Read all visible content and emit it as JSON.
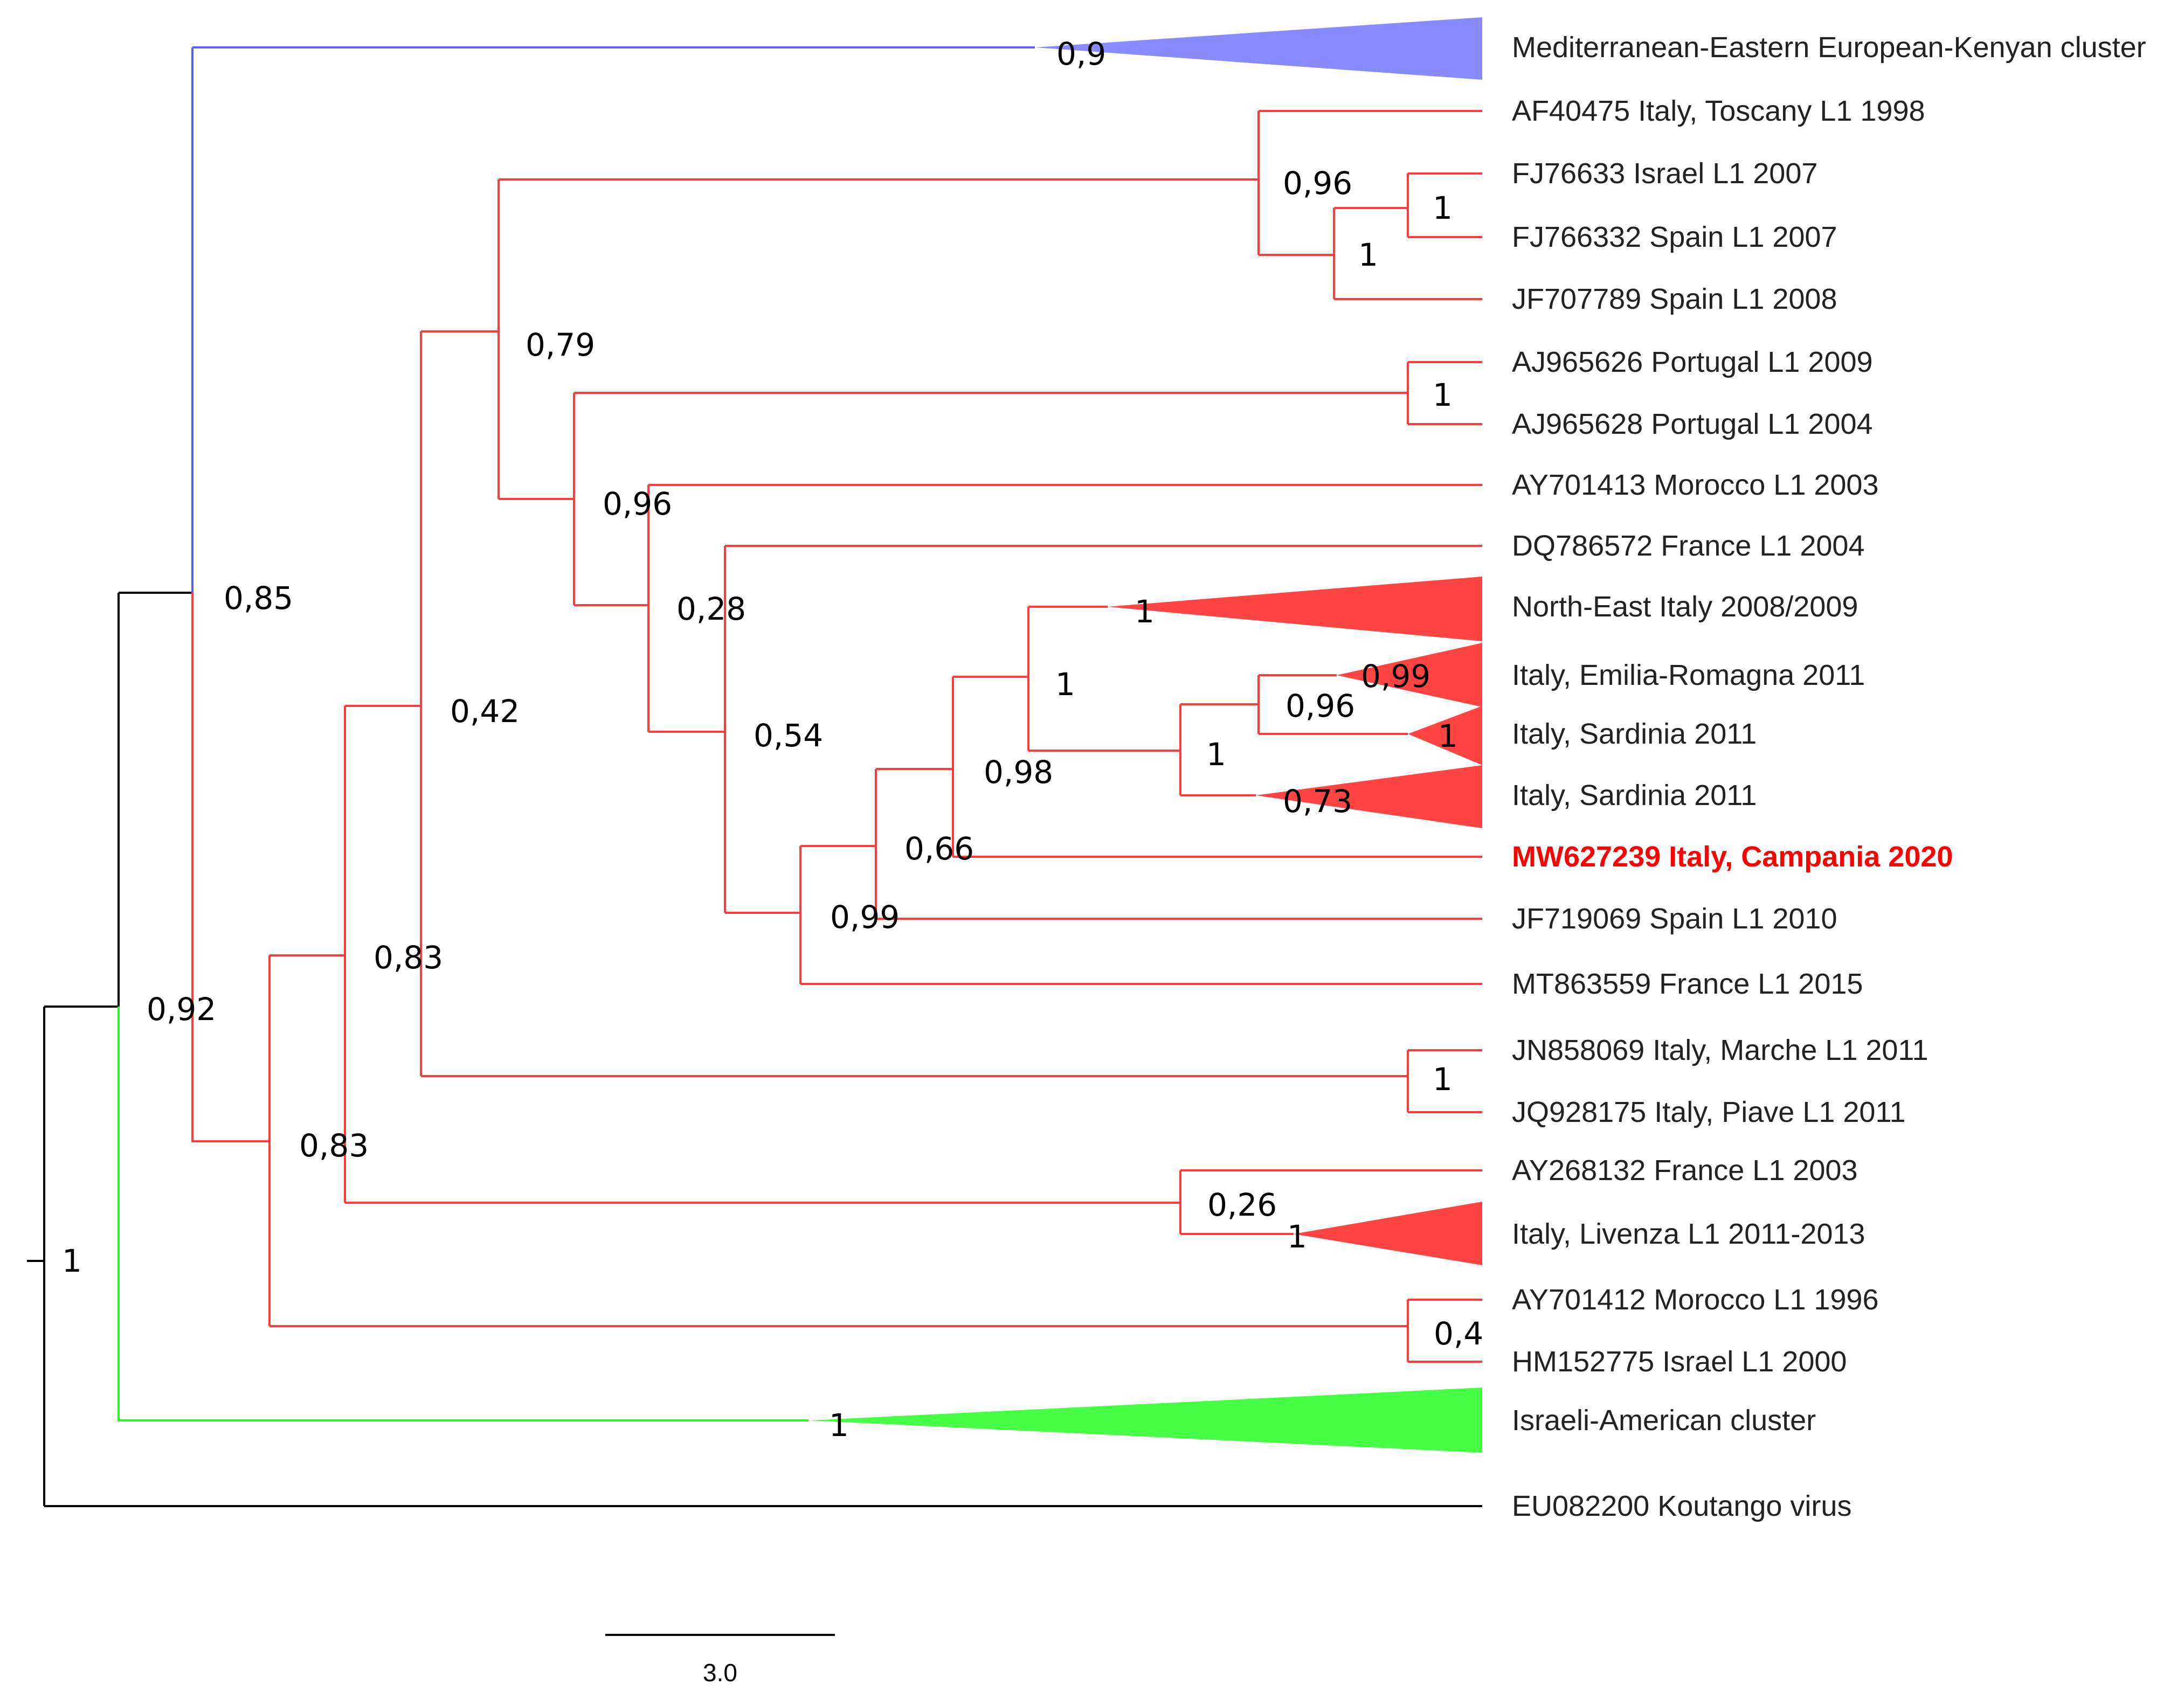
{
  "colors": {
    "blue": "#5c5cff",
    "blue_fill": "#8a8aff",
    "red": "#ff3b3b",
    "red_fill": "#ff4444",
    "green": "#33ee33",
    "green_fill": "#44ff44",
    "black": "#000000",
    "highlight": "#ff0000"
  },
  "tree": {
    "taxa": [
      {
        "id": "mediterranean",
        "label": "Mediterranean-Eastern European-Kenyan cluster",
        "collapsed": true
      },
      {
        "id": "af40475",
        "label": "AF40475 Italy, Toscany L1 1998"
      },
      {
        "id": "fj76633",
        "label": "FJ76633 Israel L1 2007"
      },
      {
        "id": "fj766332",
        "label": "FJ766332 Spain L1 2007"
      },
      {
        "id": "jf707789",
        "label": "JF707789 Spain L1 2008"
      },
      {
        "id": "aj965626",
        "label": "AJ965626 Portugal L1 2009"
      },
      {
        "id": "aj965628",
        "label": "AJ965628 Portugal L1 2004"
      },
      {
        "id": "ay701413",
        "label": "AY701413 Morocco L1 2003"
      },
      {
        "id": "dq786572",
        "label": "DQ786572 France L1 2004"
      },
      {
        "id": "ne-italy",
        "label": "North-East Italy 2008/2009",
        "collapsed": true
      },
      {
        "id": "emilia",
        "label": "Italy, Emilia-Romagna 2011",
        "collapsed": true
      },
      {
        "id": "sardinia-1",
        "label": "Italy, Sardinia 2011",
        "collapsed": true
      },
      {
        "id": "sardinia-2",
        "label": "Italy, Sardinia 2011",
        "collapsed": true
      },
      {
        "id": "mw627239",
        "label": "MW627239 Italy, Campania 2020",
        "highlight": true
      },
      {
        "id": "jf719069",
        "label": "JF719069 Spain L1 2010"
      },
      {
        "id": "mt863559",
        "label": "MT863559 France L1 2015"
      },
      {
        "id": "jn858069",
        "label": "JN858069 Italy, Marche L1 2011"
      },
      {
        "id": "jq928175",
        "label": "JQ928175 Italy, Piave L1 2011"
      },
      {
        "id": "ay268132",
        "label": "AY268132 France L1 2003"
      },
      {
        "id": "livenza",
        "label": "Italy, Livenza L1 2011-2013",
        "collapsed": true
      },
      {
        "id": "ay701412",
        "label": "AY701412 Morocco L1 1996"
      },
      {
        "id": "hm152775",
        "label": "HM152775 Israel L1 2000"
      },
      {
        "id": "israeli-american",
        "label": "Israeli-American cluster",
        "collapsed": true
      },
      {
        "id": "eu082200",
        "label": "EU082200 Koutango virus"
      }
    ],
    "support_values": [
      {
        "node": "mediterranean",
        "value": "0,9"
      },
      {
        "node": "israel-spain",
        "value": "0,96"
      },
      {
        "node": "israel-spain2007",
        "value": "1"
      },
      {
        "node": "spain-clade",
        "value": "1"
      },
      {
        "node": "upper",
        "value": "0,79"
      },
      {
        "node": "portugal",
        "value": "1"
      },
      {
        "node": "lower",
        "value": "0,96"
      },
      {
        "node": "morocco-rest",
        "value": "0,28"
      },
      {
        "node": "ne-italy",
        "value": "1"
      },
      {
        "node": "emilia",
        "value": "0,99"
      },
      {
        "node": "sardinia-1",
        "value": "1"
      },
      {
        "node": "italy-groups",
        "value": "1"
      },
      {
        "node": "emilia-sardinia",
        "value": "0,96"
      },
      {
        "node": "sard-group",
        "value": "1"
      },
      {
        "node": "sardinia-2",
        "value": "0,73"
      },
      {
        "node": "to-italy-groups",
        "value": "0,98"
      },
      {
        "node": "france-rest",
        "value": "0,54"
      },
      {
        "node": "campania",
        "value": "0,66"
      },
      {
        "node": "spain2010",
        "value": "0,99"
      },
      {
        "node": "lineage1-big",
        "value": "0,42"
      },
      {
        "node": "marche-piave",
        "value": "1"
      },
      {
        "node": "lineage1-root",
        "value": "0,85"
      },
      {
        "node": "marche-node",
        "value": "0,83"
      },
      {
        "node": "lineage1-main",
        "value": "0,92"
      },
      {
        "node": "livenza-node",
        "value": "0,83"
      },
      {
        "node": "ay268132",
        "value": "0,26"
      },
      {
        "node": "livenza",
        "value": "1"
      },
      {
        "node": "morocco-israel",
        "value": "0,4"
      },
      {
        "node": "israeli-american",
        "value": "1"
      },
      {
        "node": "root",
        "value": "1"
      }
    ],
    "scale_bar": "3.0"
  }
}
